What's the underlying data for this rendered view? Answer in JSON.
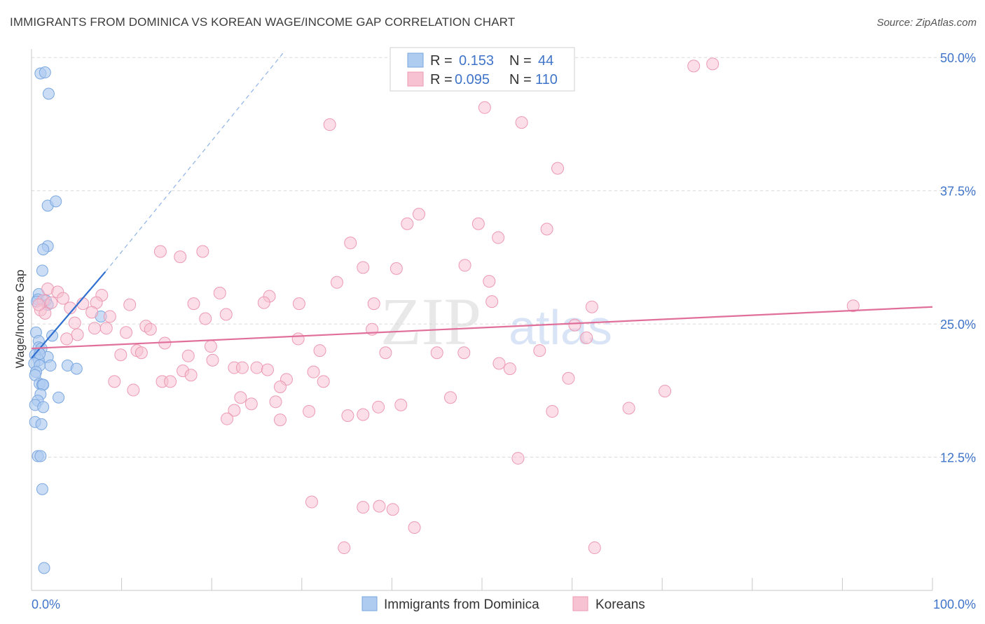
{
  "title": "IMMIGRANTS FROM DOMINICA VS KOREAN WAGE/INCOME GAP CORRELATION CHART",
  "source": "Source: ZipAtlas.com",
  "watermark": {
    "zip": "ZIP",
    "atlas": "atlas"
  },
  "colors": {
    "blue_fill": "#aecbf0",
    "blue_stroke": "#7aa7e0",
    "blue_line": "#2f6fcf",
    "pink_fill": "#f7c3d3",
    "pink_stroke": "#ec9ab3",
    "pink_line": "#e0709a",
    "grid": "#d9d9d9",
    "accent_text": "#3f74c9"
  },
  "legend": {
    "r_label": "R =",
    "n_label": "N =",
    "series": [
      {
        "name": "Immigrants from Dominica",
        "r": "0.153",
        "n": "44"
      },
      {
        "name": "Koreans",
        "r": "0.095",
        "n": "110"
      }
    ]
  },
  "chart_data": {
    "type": "scatter",
    "title": "IMMIGRANTS FROM DOMINICA VS KOREAN WAGE/INCOME GAP CORRELATION CHART",
    "xlabel": "",
    "ylabel": "Wage/Income Gap",
    "xlim": [
      0,
      100
    ],
    "ylim": [
      0,
      50.8
    ],
    "x_tick_labels": [
      "0.0%",
      "100.0%"
    ],
    "y_ticks": [
      12.5,
      25.0,
      37.5,
      50.0
    ],
    "y_tick_labels": [
      "12.5%",
      "25.0%",
      "37.5%",
      "50.0%"
    ],
    "grid": true,
    "series": [
      {
        "name": "Immigrants from Dominica",
        "points": [
          [
            1.0,
            48.5
          ],
          [
            1.5,
            48.6
          ],
          [
            1.9,
            46.6
          ],
          [
            1.8,
            36.1
          ],
          [
            2.7,
            36.5
          ],
          [
            1.8,
            32.3
          ],
          [
            1.3,
            32.0
          ],
          [
            1.2,
            30.0
          ],
          [
            0.8,
            27.8
          ],
          [
            0.7,
            27.3
          ],
          [
            1.6,
            27.2
          ],
          [
            1.8,
            26.8
          ],
          [
            7.7,
            25.7
          ],
          [
            0.5,
            24.2
          ],
          [
            2.3,
            23.9
          ],
          [
            0.8,
            23.4
          ],
          [
            0.8,
            22.8
          ],
          [
            1.1,
            22.7
          ],
          [
            0.4,
            22.1
          ],
          [
            1.8,
            21.9
          ],
          [
            0.8,
            21.6
          ],
          [
            0.3,
            21.3
          ],
          [
            0.9,
            21.1
          ],
          [
            2.1,
            21.1
          ],
          [
            4.0,
            21.1
          ],
          [
            5.0,
            20.8
          ],
          [
            0.5,
            20.5
          ],
          [
            0.4,
            20.2
          ],
          [
            0.9,
            19.4
          ],
          [
            1.2,
            19.3
          ],
          [
            1.3,
            19.3
          ],
          [
            1.0,
            18.4
          ],
          [
            3.0,
            18.1
          ],
          [
            0.7,
            17.8
          ],
          [
            0.4,
            17.4
          ],
          [
            1.3,
            17.2
          ],
          [
            0.4,
            15.8
          ],
          [
            1.1,
            15.6
          ],
          [
            0.7,
            12.6
          ],
          [
            1.0,
            12.6
          ],
          [
            1.2,
            9.5
          ],
          [
            1.4,
            2.1
          ],
          [
            0.6,
            27.1
          ],
          [
            0.9,
            22.2
          ]
        ]
      },
      {
        "name": "Koreans",
        "points": [
          [
            73.5,
            49.2
          ],
          [
            75.6,
            49.4
          ],
          [
            50.3,
            45.3
          ],
          [
            54.4,
            43.9
          ],
          [
            33.1,
            43.7
          ],
          [
            58.4,
            39.6
          ],
          [
            43.0,
            35.3
          ],
          [
            41.7,
            34.4
          ],
          [
            49.6,
            34.4
          ],
          [
            57.2,
            33.9
          ],
          [
            51.8,
            33.1
          ],
          [
            35.4,
            32.6
          ],
          [
            19.0,
            31.8
          ],
          [
            14.3,
            31.8
          ],
          [
            16.5,
            31.3
          ],
          [
            48.1,
            30.5
          ],
          [
            40.5,
            30.2
          ],
          [
            36.8,
            30.3
          ],
          [
            33.9,
            28.9
          ],
          [
            50.8,
            29.0
          ],
          [
            1.8,
            28.3
          ],
          [
            2.9,
            28.0
          ],
          [
            20.9,
            27.9
          ],
          [
            7.8,
            27.7
          ],
          [
            26.4,
            27.6
          ],
          [
            3.5,
            27.4
          ],
          [
            1.3,
            27.2
          ],
          [
            7.2,
            27.0
          ],
          [
            2.2,
            27.0
          ],
          [
            5.7,
            26.9
          ],
          [
            25.8,
            27.0
          ],
          [
            51.1,
            27.1
          ],
          [
            18.0,
            26.9
          ],
          [
            29.7,
            26.9
          ],
          [
            10.9,
            26.8
          ],
          [
            62.2,
            26.6
          ],
          [
            91.2,
            26.7
          ],
          [
            4.3,
            26.5
          ],
          [
            1.0,
            26.3
          ],
          [
            6.7,
            26.1
          ],
          [
            1.5,
            26.0
          ],
          [
            8.7,
            25.7
          ],
          [
            21.6,
            25.9
          ],
          [
            19.3,
            25.5
          ],
          [
            4.8,
            25.1
          ],
          [
            60.3,
            24.9
          ],
          [
            12.7,
            24.8
          ],
          [
            8.3,
            24.6
          ],
          [
            37.8,
            24.5
          ],
          [
            10.5,
            24.2
          ],
          [
            13.2,
            24.5
          ],
          [
            5.1,
            24.0
          ],
          [
            61.6,
            23.7
          ],
          [
            3.9,
            23.6
          ],
          [
            29.6,
            23.6
          ],
          [
            14.8,
            23.2
          ],
          [
            11.7,
            22.5
          ],
          [
            12.2,
            22.3
          ],
          [
            32.0,
            22.5
          ],
          [
            39.3,
            22.3
          ],
          [
            45.0,
            22.3
          ],
          [
            48.0,
            22.3
          ],
          [
            56.4,
            22.5
          ],
          [
            9.9,
            22.1
          ],
          [
            17.4,
            22.0
          ],
          [
            20.1,
            21.6
          ],
          [
            51.9,
            21.3
          ],
          [
            22.5,
            20.9
          ],
          [
            23.4,
            20.9
          ],
          [
            25.0,
            20.9
          ],
          [
            26.2,
            20.7
          ],
          [
            31.3,
            20.5
          ],
          [
            53.1,
            20.8
          ],
          [
            16.8,
            20.6
          ],
          [
            17.7,
            20.2
          ],
          [
            59.6,
            19.9
          ],
          [
            14.5,
            19.6
          ],
          [
            15.4,
            19.6
          ],
          [
            28.3,
            19.8
          ],
          [
            32.4,
            19.6
          ],
          [
            9.2,
            19.6
          ],
          [
            27.6,
            19.1
          ],
          [
            11.3,
            18.8
          ],
          [
            70.3,
            18.7
          ],
          [
            23.2,
            18.1
          ],
          [
            46.5,
            18.1
          ],
          [
            24.4,
            17.5
          ],
          [
            27.1,
            17.7
          ],
          [
            38.5,
            17.2
          ],
          [
            41.0,
            17.4
          ],
          [
            66.3,
            17.1
          ],
          [
            22.5,
            16.9
          ],
          [
            30.8,
            16.8
          ],
          [
            57.8,
            16.8
          ],
          [
            35.1,
            16.4
          ],
          [
            21.7,
            16.1
          ],
          [
            27.6,
            16.0
          ],
          [
            36.8,
            16.5
          ],
          [
            54.0,
            12.4
          ],
          [
            31.1,
            8.3
          ],
          [
            36.8,
            7.8
          ],
          [
            38.6,
            7.9
          ],
          [
            40.1,
            7.6
          ],
          [
            42.5,
            5.9
          ],
          [
            34.7,
            4.0
          ],
          [
            62.5,
            4.0
          ],
          [
            0.8,
            26.8
          ],
          [
            19.9,
            22.9
          ],
          [
            38.0,
            26.9
          ],
          [
            7.0,
            24.6
          ]
        ]
      }
    ],
    "trendlines": [
      {
        "series": "Immigrants from Dominica",
        "x0": 0.0,
        "y0": 21.8,
        "x1": 8.2,
        "y1": 29.9,
        "x_ext": 28.0,
        "y_ext": 50.5
      },
      {
        "series": "Koreans",
        "x0": 0.0,
        "y0": 22.7,
        "x1": 100.0,
        "y1": 26.6
      }
    ]
  }
}
